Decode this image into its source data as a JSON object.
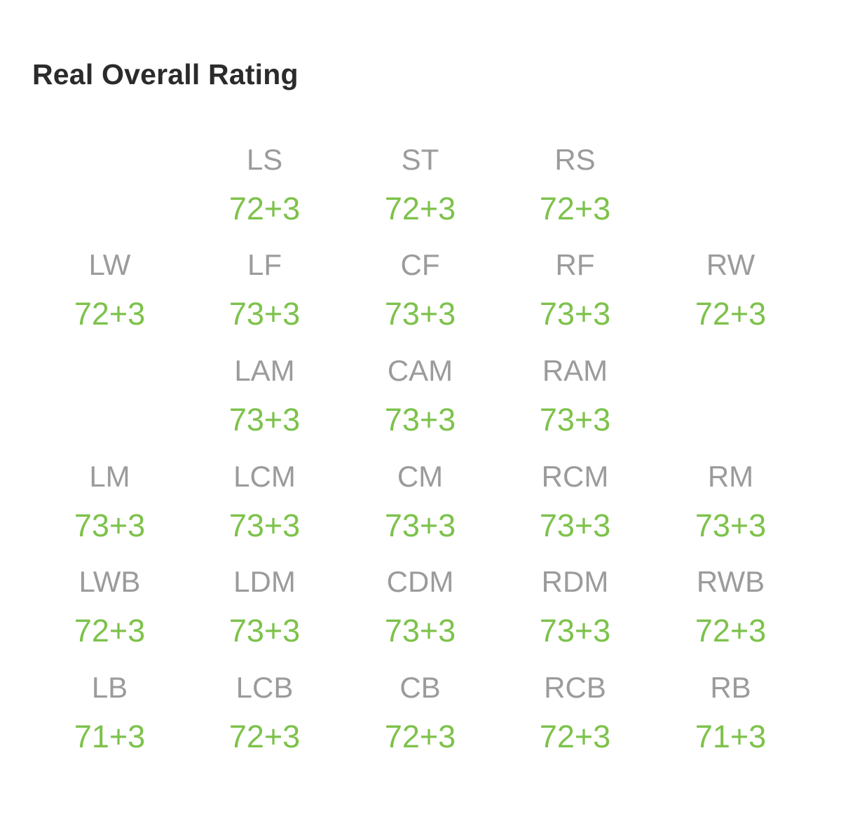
{
  "title": "Real Overall Rating",
  "colors": {
    "title": "#2b2b2b",
    "position_label": "#9b9b9b",
    "rating_value": "#7dc24b",
    "background": "#ffffff"
  },
  "rows": [
    [
      null,
      {
        "pos": "LS",
        "value": "72+3"
      },
      {
        "pos": "ST",
        "value": "72+3"
      },
      {
        "pos": "RS",
        "value": "72+3"
      },
      null
    ],
    [
      {
        "pos": "LW",
        "value": "72+3"
      },
      {
        "pos": "LF",
        "value": "73+3"
      },
      {
        "pos": "CF",
        "value": "73+3"
      },
      {
        "pos": "RF",
        "value": "73+3"
      },
      {
        "pos": "RW",
        "value": "72+3"
      }
    ],
    [
      null,
      {
        "pos": "LAM",
        "value": "73+3"
      },
      {
        "pos": "CAM",
        "value": "73+3"
      },
      {
        "pos": "RAM",
        "value": "73+3"
      },
      null
    ],
    [
      {
        "pos": "LM",
        "value": "73+3"
      },
      {
        "pos": "LCM",
        "value": "73+3"
      },
      {
        "pos": "CM",
        "value": "73+3"
      },
      {
        "pos": "RCM",
        "value": "73+3"
      },
      {
        "pos": "RM",
        "value": "73+3"
      }
    ],
    [
      {
        "pos": "LWB",
        "value": "72+3"
      },
      {
        "pos": "LDM",
        "value": "73+3"
      },
      {
        "pos": "CDM",
        "value": "73+3"
      },
      {
        "pos": "RDM",
        "value": "73+3"
      },
      {
        "pos": "RWB",
        "value": "72+3"
      }
    ],
    [
      {
        "pos": "LB",
        "value": "71+3"
      },
      {
        "pos": "LCB",
        "value": "72+3"
      },
      {
        "pos": "CB",
        "value": "72+3"
      },
      {
        "pos": "RCB",
        "value": "72+3"
      },
      {
        "pos": "RB",
        "value": "71+3"
      }
    ]
  ]
}
